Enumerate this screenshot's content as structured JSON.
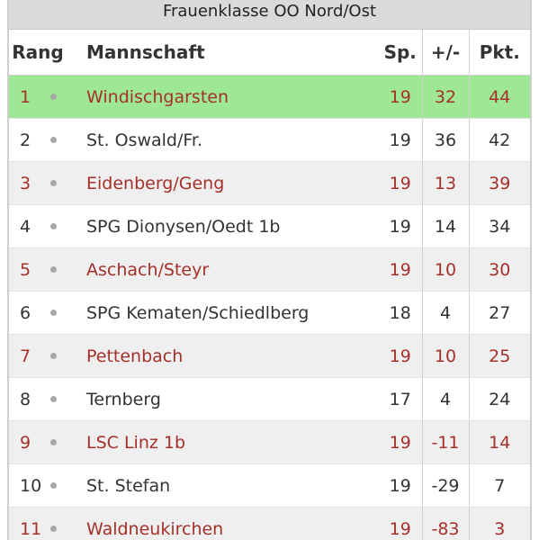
{
  "title": "Frauenklasse OO Nord/Ost",
  "columns": {
    "rang": "Rang",
    "team": "Mannschaft",
    "sp": "Sp.",
    "diff": "+/-",
    "pkt": "Pkt."
  },
  "rows": [
    {
      "rang": "1",
      "team": "Windischgarsten",
      "sp": "19",
      "diff": "32",
      "pkt": "44"
    },
    {
      "rang": "2",
      "team": "St. Oswald/Fr.",
      "sp": "19",
      "diff": "36",
      "pkt": "42"
    },
    {
      "rang": "3",
      "team": "Eidenberg/Geng",
      "sp": "19",
      "diff": "13",
      "pkt": "39"
    },
    {
      "rang": "4",
      "team": "SPG Dionysen/Oedt 1b",
      "sp": "19",
      "diff": "14",
      "pkt": "34"
    },
    {
      "rang": "5",
      "team": "Aschach/Steyr",
      "sp": "19",
      "diff": "10",
      "pkt": "30"
    },
    {
      "rang": "6",
      "team": "SPG Kematen/Schiedlberg",
      "sp": "18",
      "diff": "4",
      "pkt": "27"
    },
    {
      "rang": "7",
      "team": "Pettenbach",
      "sp": "19",
      "diff": "10",
      "pkt": "25"
    },
    {
      "rang": "8",
      "team": "Ternberg",
      "sp": "17",
      "diff": "4",
      "pkt": "24"
    },
    {
      "rang": "9",
      "team": "LSC Linz 1b",
      "sp": "19",
      "diff": "-11",
      "pkt": "14"
    },
    {
      "rang": "10",
      "team": "St. Stefan",
      "sp": "19",
      "diff": "-29",
      "pkt": "7"
    },
    {
      "rang": "11",
      "team": "Waldneukirchen",
      "sp": "19",
      "diff": "-83",
      "pkt": "3"
    }
  ],
  "colors": {
    "leader_highlight": "#9ee895",
    "accent_text": "#a5302a",
    "alt_row": "#efefef",
    "header_bar": "#dadada"
  }
}
